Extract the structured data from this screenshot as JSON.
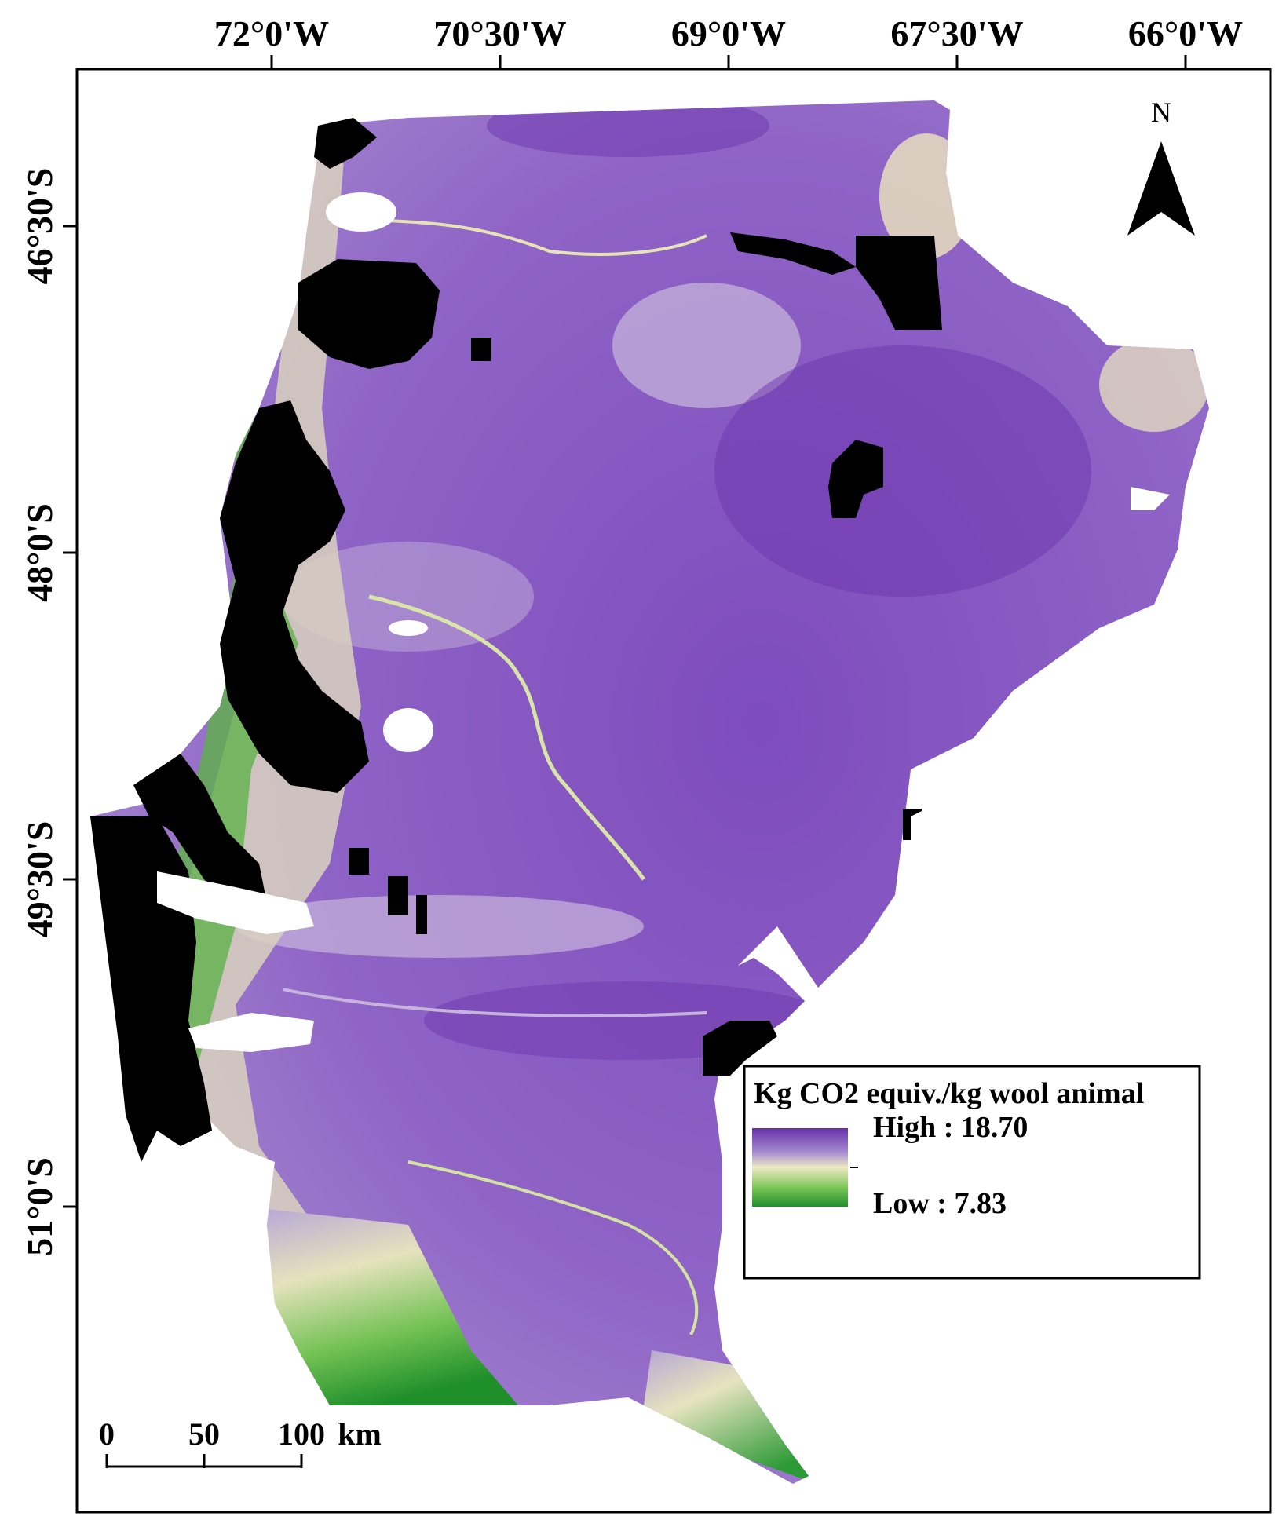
{
  "longitude_labels": [
    "72°0'W",
    "70°30'W",
    "69°0'W",
    "67°30'W",
    "66°0'W"
  ],
  "latitude_labels": [
    "46°30'S",
    "48°0'S",
    "49°30'S",
    "51°0'S"
  ],
  "north_arrow": {
    "label": "N",
    "icon": "north-arrow-icon"
  },
  "legend": {
    "title": "Kg CO2 equiv./kg wool animal",
    "high_label": "High : 18.70",
    "low_label": "Low : 7.83",
    "ramp_colors": [
      "#6a2fa8",
      "#9a7cc8",
      "#efe9c4",
      "#7ec85a",
      "#1f8f2a"
    ]
  },
  "scale_bar": {
    "labels": [
      "0",
      "50",
      "100"
    ],
    "unit": "km"
  },
  "colors": {
    "high": "#7a46b8",
    "mid": "#a98fd0",
    "light": "#ebe6bf",
    "low": "#2f9a34",
    "nodata": "#000000",
    "water": "#ffffff"
  }
}
